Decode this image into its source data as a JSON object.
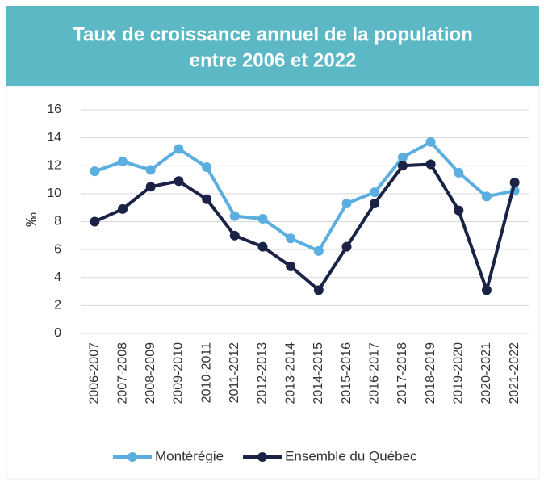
{
  "chart_data": {
    "type": "line",
    "title": [
      "Taux de croissance annuel de la population",
      "entre 2006 et 2022"
    ],
    "ylabel": "‰",
    "categories": [
      "2006-2007",
      "2007-2008",
      "2008-2009",
      "2009-2010",
      "2010-2011",
      "2011-2012",
      "2012-2013",
      "2013-2014",
      "2014-2015",
      "2015-2016",
      "2016-2017",
      "2017-2018",
      "2018-2019",
      "2019-2020",
      "2020-2021",
      "2021-2022"
    ],
    "series": [
      {
        "name": "Montérégie",
        "color": "#5aaee0",
        "values": [
          11.6,
          12.3,
          11.7,
          13.2,
          11.9,
          8.4,
          8.2,
          6.8,
          5.9,
          9.3,
          10.1,
          12.6,
          13.7,
          11.5,
          9.8,
          10.2
        ]
      },
      {
        "name": "Ensemble du Québec",
        "color": "#1a2346",
        "values": [
          8.0,
          8.9,
          10.5,
          10.9,
          9.6,
          7.0,
          6.2,
          4.8,
          3.1,
          6.2,
          9.3,
          12.0,
          12.1,
          8.8,
          3.1,
          10.8
        ]
      }
    ],
    "ylim": [
      0,
      16
    ],
    "yticks": [
      0,
      2,
      4,
      6,
      8,
      10,
      12,
      14,
      16
    ],
    "grid": true,
    "legend": "bottom"
  }
}
